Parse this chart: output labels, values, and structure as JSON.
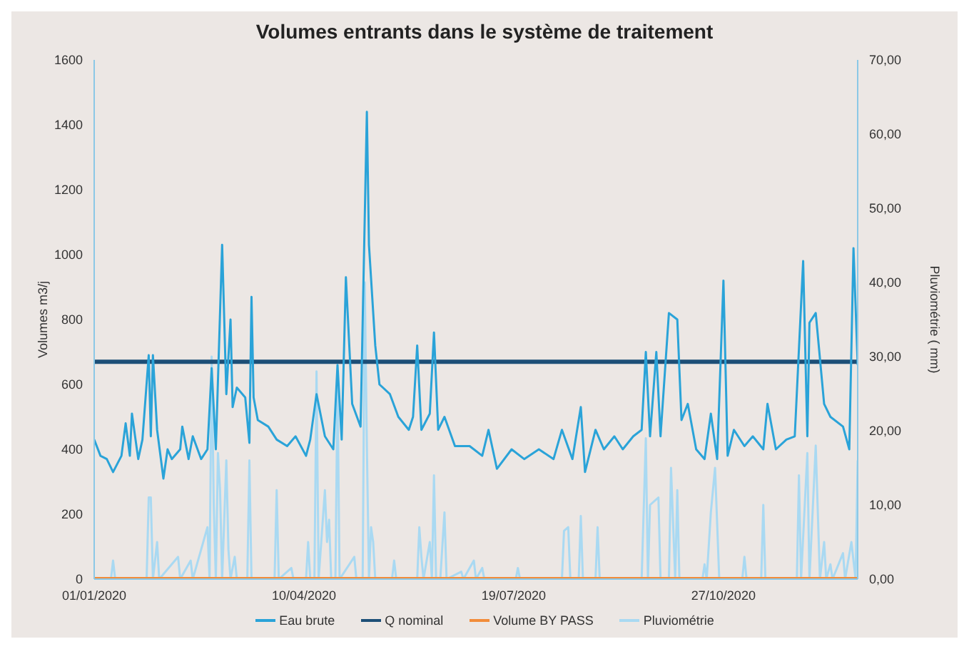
{
  "chart_data": {
    "type": "line",
    "title": "Volumes entrants dans le système de traitement",
    "ylabel": "Volumes m3/j",
    "y2label": "Pluviométrie ( mm)",
    "xlim": [
      "2020-01-01",
      "2020-12-30"
    ],
    "xticks": [
      {
        "value": "2020-01-01",
        "label": "01/01/2020"
      },
      {
        "value": "2020-04-10",
        "label": "10/04/2020"
      },
      {
        "value": "2020-07-19",
        "label": "19/07/2020"
      },
      {
        "value": "2020-10-27",
        "label": "27/10/2020"
      }
    ],
    "ylim": [
      0,
      1600
    ],
    "yticks": [
      0,
      200,
      400,
      600,
      800,
      1000,
      1200,
      1400,
      1600
    ],
    "y2lim": [
      0,
      70
    ],
    "y2ticks": [
      {
        "value": 0,
        "label": "0,00"
      },
      {
        "value": 10,
        "label": "10,00"
      },
      {
        "value": 20,
        "label": "20,00"
      },
      {
        "value": 30,
        "label": "30,00"
      },
      {
        "value": 40,
        "label": "40,00"
      },
      {
        "value": 50,
        "label": "50,00"
      },
      {
        "value": 60,
        "label": "60,00"
      },
      {
        "value": 70,
        "label": "70,00"
      }
    ],
    "grid": false,
    "legend": "bottom",
    "marker": "none",
    "line_style": "solid",
    "series": [
      {
        "name": "Eau brute",
        "color": "#2aa3d8",
        "x": [
          "2020-01-01",
          "2020-01-04",
          "2020-01-07",
          "2020-01-10",
          "2020-01-14",
          "2020-01-16",
          "2020-01-18",
          "2020-01-19",
          "2020-01-22",
          "2020-01-24",
          "2020-01-27",
          "2020-01-28",
          "2020-01-29",
          "2020-01-31",
          "2020-02-03",
          "2020-02-05",
          "2020-02-07",
          "2020-02-11",
          "2020-02-12",
          "2020-02-15",
          "2020-02-17",
          "2020-02-21",
          "2020-02-24",
          "2020-02-26",
          "2020-02-28",
          "2020-03-02",
          "2020-03-04",
          "2020-03-06",
          "2020-03-07",
          "2020-03-09",
          "2020-03-13",
          "2020-03-15",
          "2020-03-16",
          "2020-03-17",
          "2020-03-19",
          "2020-03-24",
          "2020-03-28",
          "2020-04-02",
          "2020-04-06",
          "2020-04-11",
          "2020-04-13",
          "2020-04-16",
          "2020-04-20",
          "2020-04-24",
          "2020-04-26",
          "2020-04-28",
          "2020-04-30",
          "2020-05-03",
          "2020-05-07",
          "2020-05-10",
          "2020-05-11",
          "2020-05-14",
          "2020-05-16",
          "2020-05-21",
          "2020-05-25",
          "2020-05-30",
          "2020-06-01",
          "2020-06-03",
          "2020-06-05",
          "2020-06-09",
          "2020-06-11",
          "2020-06-13",
          "2020-06-16",
          "2020-06-21",
          "2020-06-25",
          "2020-06-28",
          "2020-06-30",
          "2020-07-04",
          "2020-07-07",
          "2020-07-11",
          "2020-07-18",
          "2020-07-24",
          "2020-07-31",
          "2020-08-07",
          "2020-08-11",
          "2020-08-16",
          "2020-08-20",
          "2020-08-22",
          "2020-08-27",
          "2020-08-31",
          "2020-09-05",
          "2020-09-09",
          "2020-09-14",
          "2020-09-18",
          "2020-09-20",
          "2020-09-22",
          "2020-09-25",
          "2020-09-27",
          "2020-10-01",
          "2020-10-05",
          "2020-10-07",
          "2020-10-10",
          "2020-10-14",
          "2020-10-18",
          "2020-10-21",
          "2020-10-24",
          "2020-10-27",
          "2020-10-29",
          "2020-11-01",
          "2020-11-06",
          "2020-11-10",
          "2020-11-15",
          "2020-11-17",
          "2020-11-21",
          "2020-11-26",
          "2020-11-30",
          "2020-12-04",
          "2020-12-06",
          "2020-12-07",
          "2020-12-10",
          "2020-12-14",
          "2020-12-17",
          "2020-12-23",
          "2020-12-26",
          "2020-12-28",
          "2020-12-30"
        ],
        "values": [
          430,
          380,
          370,
          330,
          380,
          480,
          380,
          510,
          370,
          430,
          690,
          440,
          690,
          460,
          310,
          400,
          370,
          400,
          470,
          370,
          440,
          370,
          400,
          650,
          400,
          1030,
          570,
          800,
          530,
          590,
          560,
          420,
          870,
          560,
          490,
          470,
          430,
          410,
          440,
          380,
          430,
          570,
          440,
          400,
          660,
          430,
          930,
          540,
          470,
          1440,
          1030,
          720,
          600,
          570,
          500,
          460,
          500,
          720,
          460,
          510,
          760,
          460,
          500,
          410,
          410,
          410,
          400,
          380,
          460,
          340,
          400,
          370,
          400,
          370,
          460,
          370,
          530,
          330,
          460,
          400,
          440,
          400,
          440,
          460,
          700,
          440,
          700,
          440,
          820,
          800,
          490,
          540,
          400,
          370,
          510,
          370,
          920,
          380,
          460,
          410,
          440,
          400,
          540,
          400,
          430,
          440,
          980,
          440,
          790,
          820,
          540,
          500,
          470,
          400,
          1020,
          660
        ]
      },
      {
        "name": "Q nominal",
        "color": "#1d4f77",
        "x": [
          "2020-01-01",
          "2020-12-30"
        ],
        "values": [
          670,
          670
        ]
      },
      {
        "name": "Volume BY PASS",
        "color": "#f28c3a",
        "x": [
          "2020-01-01",
          "2020-12-30"
        ],
        "values": [
          0,
          0
        ]
      },
      {
        "name": "Pluviométrie",
        "color": "#a9d9f2",
        "axis": "y2",
        "x": [
          "2020-01-01",
          "2020-01-09",
          "2020-01-10",
          "2020-01-11",
          "2020-01-26",
          "2020-01-27",
          "2020-01-28",
          "2020-01-29",
          "2020-01-31",
          "2020-02-01",
          "2020-02-10",
          "2020-02-11",
          "2020-02-16",
          "2020-02-17",
          "2020-02-24",
          "2020-02-25",
          "2020-02-26",
          "2020-02-27",
          "2020-02-28",
          "2020-02-29",
          "2020-03-01",
          "2020-03-02",
          "2020-03-04",
          "2020-03-05",
          "2020-03-06",
          "2020-03-08",
          "2020-03-09",
          "2020-03-14",
          "2020-03-15",
          "2020-03-16",
          "2020-03-27",
          "2020-03-28",
          "2020-03-29",
          "2020-04-04",
          "2020-04-05",
          "2020-04-11",
          "2020-04-12",
          "2020-04-13",
          "2020-04-15",
          "2020-04-16",
          "2020-04-17",
          "2020-04-20",
          "2020-04-21",
          "2020-04-22",
          "2020-04-23",
          "2020-04-25",
          "2020-04-26",
          "2020-04-27",
          "2020-05-04",
          "2020-05-05",
          "2020-05-08",
          "2020-05-09",
          "2020-05-10",
          "2020-05-11",
          "2020-05-12",
          "2020-05-13",
          "2020-05-14",
          "2020-05-22",
          "2020-05-23",
          "2020-05-24",
          "2020-06-03",
          "2020-06-04",
          "2020-06-05",
          "2020-06-06",
          "2020-06-09",
          "2020-06-10",
          "2020-06-11",
          "2020-06-12",
          "2020-06-14",
          "2020-06-16",
          "2020-06-17",
          "2020-06-24",
          "2020-06-25",
          "2020-06-30",
          "2020-07-01",
          "2020-07-04",
          "2020-07-05",
          "2020-07-20",
          "2020-07-21",
          "2020-07-22",
          "2020-08-11",
          "2020-08-12",
          "2020-08-14",
          "2020-08-15",
          "2020-08-19",
          "2020-08-20",
          "2020-08-21",
          "2020-08-27",
          "2020-08-28",
          "2020-08-29",
          "2020-09-18",
          "2020-09-20",
          "2020-09-21",
          "2020-09-22",
          "2020-09-26",
          "2020-09-27",
          "2020-10-01",
          "2020-10-02",
          "2020-10-04",
          "2020-10-05",
          "2020-10-06",
          "2020-10-17",
          "2020-10-18",
          "2020-10-19",
          "2020-10-21",
          "2020-10-23",
          "2020-10-25",
          "2020-11-05",
          "2020-11-06",
          "2020-11-07",
          "2020-11-14",
          "2020-11-15",
          "2020-11-16",
          "2020-12-01",
          "2020-12-02",
          "2020-12-03",
          "2020-12-06",
          "2020-12-07",
          "2020-12-10",
          "2020-12-12",
          "2020-12-14",
          "2020-12-15",
          "2020-12-17",
          "2020-12-18",
          "2020-12-23",
          "2020-12-24",
          "2020-12-27",
          "2020-12-29",
          "2020-12-30"
        ],
        "values": [
          0,
          0,
          2.5,
          0,
          0,
          11,
          11,
          0,
          5,
          0,
          3,
          0,
          2.5,
          0,
          7,
          0,
          30,
          10,
          0,
          17,
          12,
          0,
          16,
          4,
          0,
          3,
          0,
          0,
          16,
          0,
          0,
          12,
          0,
          1.5,
          0,
          0,
          5,
          0,
          0,
          28,
          0,
          12,
          5,
          8,
          0,
          0,
          26,
          0,
          3,
          0,
          0,
          40,
          18,
          0,
          7,
          5,
          0,
          0,
          2.5,
          0,
          0,
          7,
          3,
          0,
          5,
          0,
          14,
          0,
          0,
          9,
          0,
          1,
          0,
          2.5,
          0,
          1.5,
          0,
          0,
          1.5,
          0,
          0,
          6.5,
          7,
          0,
          0,
          8.5,
          0,
          0,
          7,
          0,
          0,
          19,
          0,
          10,
          11,
          0,
          0,
          15,
          0,
          12,
          0,
          0,
          2,
          0,
          9,
          15,
          0,
          0,
          3,
          0,
          0,
          10,
          0,
          0,
          14,
          0,
          17,
          0,
          18,
          0,
          5,
          0,
          2,
          0,
          3.5,
          0,
          5,
          0,
          16
        ]
      }
    ]
  }
}
